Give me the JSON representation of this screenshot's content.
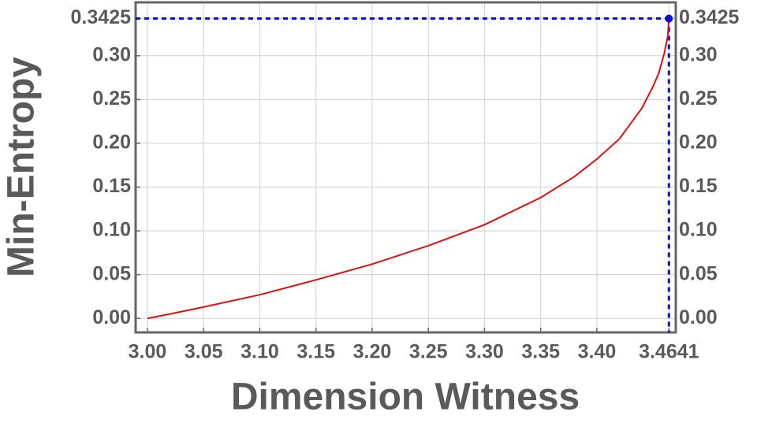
{
  "chart_data": {
    "type": "line",
    "x_label": "Dimension Witness",
    "y_label": "Min-Entropy",
    "x": [
      3.0,
      3.02,
      3.05,
      3.1,
      3.15,
      3.2,
      3.25,
      3.3,
      3.35,
      3.38,
      3.4,
      3.42,
      3.44,
      3.45,
      3.455,
      3.46,
      3.463,
      3.4641
    ],
    "series": [
      {
        "name": "Min-Entropy",
        "color": "#e01010",
        "values": [
          0,
          0.005,
          0.013,
          0.027,
          0.044,
          0.062,
          0.083,
          0.107,
          0.138,
          0.162,
          0.182,
          0.205,
          0.24,
          0.265,
          0.28,
          0.303,
          0.322,
          0.3425
        ]
      }
    ],
    "marker": {
      "x": 3.4641,
      "y": 0.3425,
      "color": "#1010d0"
    },
    "xlim": [
      2.9895,
      3.4702
    ],
    "ylim": [
      -0.016,
      0.361
    ],
    "xticks": [
      {
        "value": 3.0,
        "label": "3.00"
      },
      {
        "value": 3.05,
        "label": "3.05"
      },
      {
        "value": 3.1,
        "label": "3.10"
      },
      {
        "value": 3.15,
        "label": "3.15"
      },
      {
        "value": 3.2,
        "label": "3.20"
      },
      {
        "value": 3.25,
        "label": "3.25"
      },
      {
        "value": 3.3,
        "label": "3.30"
      },
      {
        "value": 3.35,
        "label": "3.35"
      },
      {
        "value": 3.4,
        "label": "3.40"
      },
      3.4641
    ],
    "yticks": [
      {
        "value": 0,
        "label": "0.00"
      },
      0.05,
      {
        "value": 0.1,
        "label": "0.10"
      },
      0.15,
      {
        "value": 0.2,
        "label": "0.20"
      },
      0.25,
      {
        "value": 0.3,
        "label": "0.30"
      },
      0.3425
    ],
    "grid": true
  }
}
